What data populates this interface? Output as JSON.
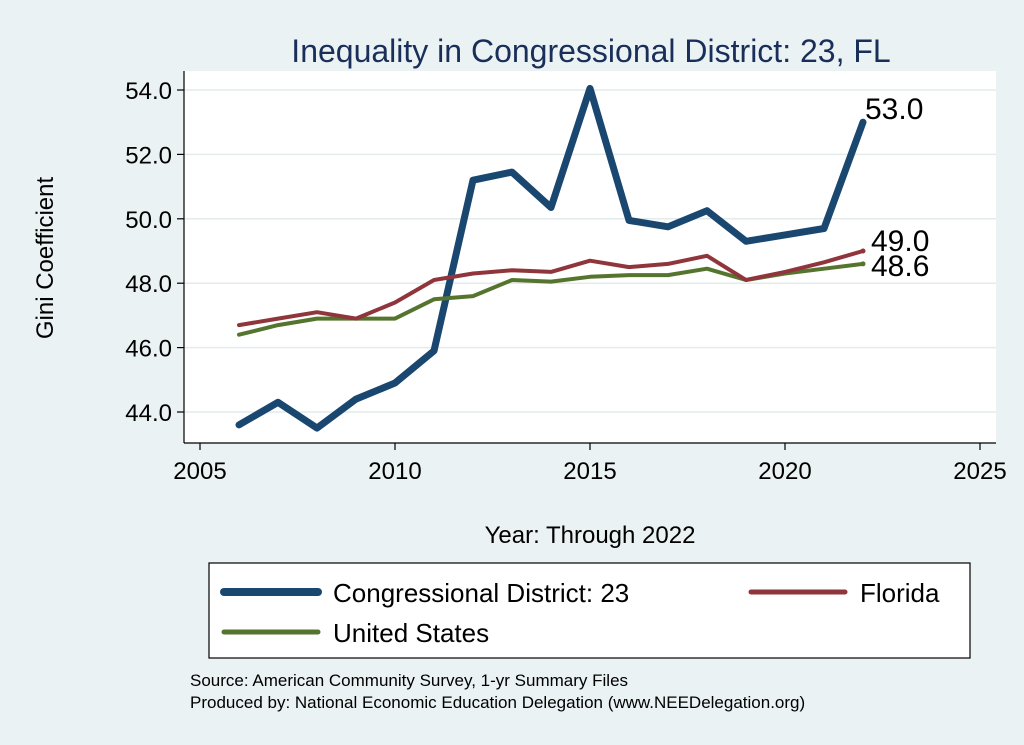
{
  "chart_data": {
    "type": "line",
    "title": "Inequality in Congressional District:  23, FL",
    "xlabel": "Year: Through 2022",
    "ylabel": "Gini Coefficient",
    "xlim": [
      2005,
      2025
    ],
    "ylim": [
      43.0,
      54.5
    ],
    "xticks": [
      2005,
      2010,
      2015,
      2020,
      2025
    ],
    "yticks": [
      44.0,
      46.0,
      48.0,
      50.0,
      52.0,
      54.0
    ],
    "ytick_labels": [
      "44.0",
      "46.0",
      "48.0",
      "50.0",
      "52.0",
      "54.0"
    ],
    "grid": "horizontal",
    "legend_position": "bottom",
    "x": [
      2006,
      2007,
      2008,
      2009,
      2010,
      2011,
      2012,
      2013,
      2014,
      2015,
      2016,
      2017,
      2018,
      2019,
      2020,
      2021,
      2022
    ],
    "series": [
      {
        "name": "Congressional District:  23",
        "color": "#1a476f",
        "values": [
          43.6,
          44.3,
          43.5,
          44.4,
          44.9,
          45.9,
          51.2,
          51.45,
          50.35,
          54.05,
          49.95,
          49.75,
          50.25,
          49.3,
          49.5,
          49.7,
          53.0
        ],
        "end_label": "53.0"
      },
      {
        "name": "Florida",
        "color": "#90353b",
        "values": [
          46.7,
          46.9,
          47.1,
          46.9,
          47.4,
          48.1,
          48.3,
          48.4,
          48.35,
          48.7,
          48.5,
          48.6,
          48.85,
          48.1,
          48.35,
          48.65,
          49.0
        ],
        "end_label": "49.0"
      },
      {
        "name": "United States",
        "color": "#55752f",
        "values": [
          46.4,
          46.7,
          46.9,
          46.9,
          46.9,
          47.5,
          47.6,
          48.1,
          48.05,
          48.2,
          48.25,
          48.25,
          48.45,
          48.1,
          48.3,
          48.45,
          48.6
        ],
        "end_label": "48.6"
      }
    ]
  },
  "source_lines": [
    "Source: American Community Survey, 1-yr Summary Files",
    "Produced by: National Economic Education Delegation (www.NEEDelegation.org)"
  ]
}
